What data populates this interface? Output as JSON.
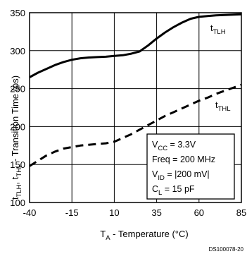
{
  "chart_data": {
    "type": "line",
    "xlabel": {
      "main": "T",
      "sub": "A",
      "rest": " - Temperature (°C)"
    },
    "ylabel": {
      "p1": "t",
      "s1": "TLH",
      "p2": ", t",
      "s2": "THL",
      "p3": " - Transition Time (ps)"
    },
    "xlim": [
      -40,
      85
    ],
    "ylim": [
      100,
      350
    ],
    "x_ticks": [
      -40,
      -15,
      10,
      35,
      60,
      85
    ],
    "y_ticks": [
      100,
      150,
      200,
      250,
      300,
      350
    ],
    "grid": true,
    "series": [
      {
        "name": "tTLH",
        "label_main": "t",
        "label_sub": "TLH",
        "style": "solid",
        "x": [
          -40,
          -35,
          -30,
          -25,
          -20,
          -15,
          -10,
          -5,
          0,
          5,
          10,
          15,
          20,
          25,
          30,
          35,
          40,
          45,
          50,
          55,
          60,
          65,
          70,
          75,
          80,
          85
        ],
        "y": [
          265,
          271,
          276,
          281,
          285,
          288,
          290,
          291,
          291.5,
          292,
          293,
          294,
          296,
          299,
          307,
          316,
          324,
          331,
          337,
          342,
          344.5,
          345.5,
          346.5,
          347,
          347.5,
          348
        ]
      },
      {
        "name": "tTHL",
        "label_main": "t",
        "label_sub": "THL",
        "style": "dashed",
        "x": [
          -40,
          -35,
          -30,
          -25,
          -20,
          -15,
          -10,
          -5,
          0,
          5,
          10,
          15,
          20,
          25,
          30,
          35,
          40,
          45,
          50,
          55,
          60,
          65,
          70,
          75,
          80,
          85
        ],
        "y": [
          148,
          155,
          162,
          167,
          171,
          173,
          175,
          176,
          177,
          178,
          180,
          185,
          190,
          196,
          202,
          208,
          214,
          219,
          224,
          229,
          234,
          238,
          243,
          247,
          251,
          255
        ]
      }
    ],
    "conditions": [
      {
        "main": "V",
        "sub": "CC",
        "rest": " = 3.3V"
      },
      {
        "main": "Freq = 200 MHz",
        "sub": "",
        "rest": ""
      },
      {
        "main": "V",
        "sub": "ID",
        "rest": " = |200 mV|"
      },
      {
        "main": "C",
        "sub": "L",
        "rest": " = 15 pF"
      }
    ],
    "footer": "DS100078-20"
  }
}
